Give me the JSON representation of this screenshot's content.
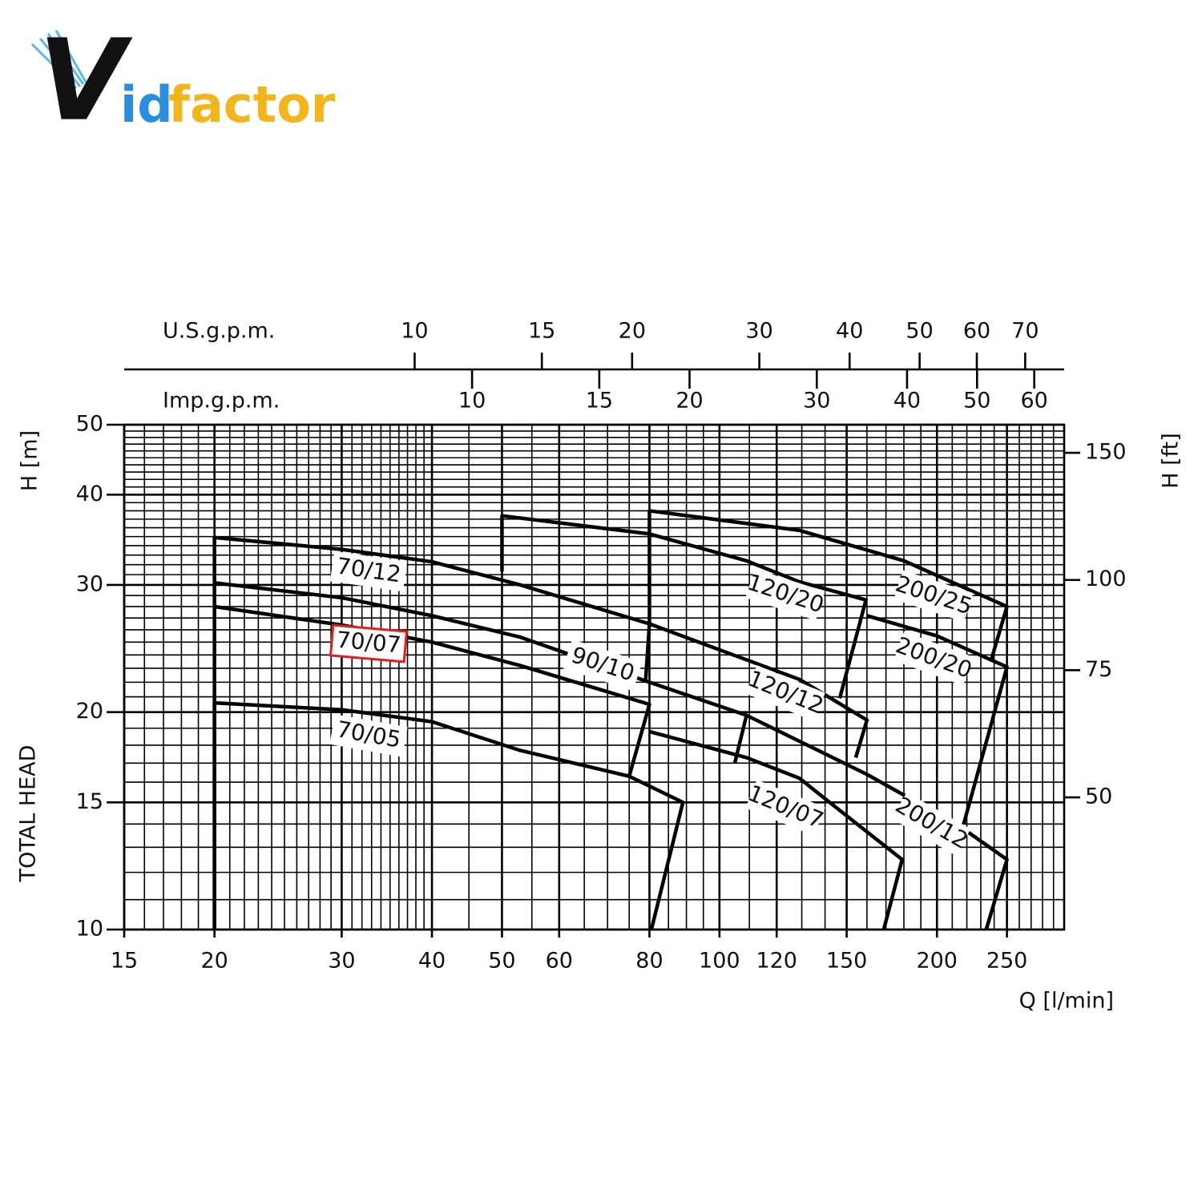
{
  "logo": {
    "mark": "V",
    "text1": "id",
    "text2": "factor"
  },
  "chart_data": {
    "type": "line",
    "log_x": true,
    "log_y": true,
    "grid": true,
    "xlabel": "Q [l/min]",
    "ylabel": "H [m]",
    "ylabel2": "TOTAL HEAD",
    "y2label": "H [ft]",
    "xlim": [
      15,
      300
    ],
    "ylim": [
      10,
      50
    ],
    "xticks": [
      15,
      20,
      30,
      40,
      50,
      60,
      80,
      100,
      120,
      150,
      200,
      250
    ],
    "yticks": [
      10,
      15,
      20,
      30,
      40,
      50
    ],
    "xgrid": [
      16,
      17,
      18,
      19,
      21,
      22,
      23,
      24,
      25,
      26,
      27,
      28,
      29,
      31,
      32,
      33,
      34,
      35,
      36,
      37,
      38,
      39,
      45,
      55,
      65,
      70,
      75,
      85,
      90,
      95,
      110,
      130,
      140,
      160,
      170,
      180,
      190,
      210,
      220,
      230,
      240,
      260,
      270,
      280,
      290
    ],
    "ygrid": [
      11,
      12,
      13,
      14,
      16,
      17,
      18,
      19,
      21,
      22,
      23,
      24,
      25,
      26,
      27,
      28,
      29,
      31,
      32,
      33,
      34,
      35,
      36,
      37,
      38,
      39,
      41,
      42,
      43,
      44,
      45,
      46,
      47,
      48,
      49
    ],
    "y2lim": [
      32.81,
      164.04
    ],
    "y2ticks": [
      50,
      75,
      100,
      150
    ],
    "top_axes": [
      {
        "label": "U.S.g.p.m.",
        "lim": [
          3.963,
          79.26
        ],
        "ticks": [
          10,
          15,
          20,
          30,
          40,
          50,
          60,
          70
        ]
      },
      {
        "label": "Imp.g.p.m.",
        "lim": [
          3.3,
          66.0
        ],
        "ticks": [
          10,
          15,
          20,
          30,
          40,
          50,
          60
        ]
      }
    ],
    "series": [
      {
        "name": "70/05",
        "color": "#000000",
        "x": [
          20,
          20,
          30,
          40,
          53,
          75,
          89,
          80.5
        ],
        "values": [
          10,
          20.6,
          20.15,
          19.4,
          17.7,
          16.3,
          15.0,
          10
        ]
      },
      {
        "name": "70/07",
        "color": "#000000",
        "highlighted": true,
        "x": [
          20,
          30,
          40,
          53,
          80,
          75
        ],
        "values": [
          28,
          26.4,
          25.0,
          23.2,
          20.5,
          16.3
        ]
      },
      {
        "name": "70/12",
        "color": "#000000",
        "x": [
          20,
          20,
          30,
          40,
          53,
          80,
          79
        ],
        "values": [
          10,
          34.9,
          33.6,
          32.3,
          30.0,
          26.5,
          22.0
        ]
      },
      {
        "name": "90/10",
        "color": "#000000",
        "x": [
          20,
          30,
          40,
          53,
          80,
          109,
          105
        ],
        "values": [
          30.2,
          28.8,
          27.2,
          25.4,
          22.0,
          19.8,
          17.0
        ]
      },
      {
        "name": "120/20",
        "color": "#000000",
        "x": [
          50,
          50,
          80,
          109,
          129,
          159.5,
          146.7
        ],
        "values": [
          31.3,
          37.4,
          35.3,
          32.4,
          30.3,
          28.6,
          20.9
        ]
      },
      {
        "name": "120/12",
        "color": "#000000",
        "x": [
          80,
          129,
          160,
          154.4
        ],
        "values": [
          26.5,
          22.2,
          19.5,
          17.3
        ]
      },
      {
        "name": "120/07",
        "color": "#000000",
        "x": [
          80,
          109,
          129,
          147,
          179,
          168.8
        ],
        "values": [
          18.8,
          17.3,
          16.2,
          14.6,
          12.5,
          10
        ]
      },
      {
        "name": "200/25",
        "color": "#000000",
        "x": [
          80,
          80,
          129,
          180,
          250,
          238
        ],
        "values": [
          26.5,
          38.0,
          35.7,
          32.4,
          28.0,
          23.7
        ]
      },
      {
        "name": "200/20",
        "color": "#000000",
        "x": [
          160,
          200,
          250,
          217.8
        ],
        "values": [
          27.2,
          25.5,
          23.1,
          14.0
        ]
      },
      {
        "name": "200/12",
        "color": "#000000",
        "x": [
          109,
          160,
          215,
          250,
          234
        ],
        "values": [
          19.8,
          16.4,
          13.9,
          12.5,
          10
        ]
      }
    ]
  }
}
